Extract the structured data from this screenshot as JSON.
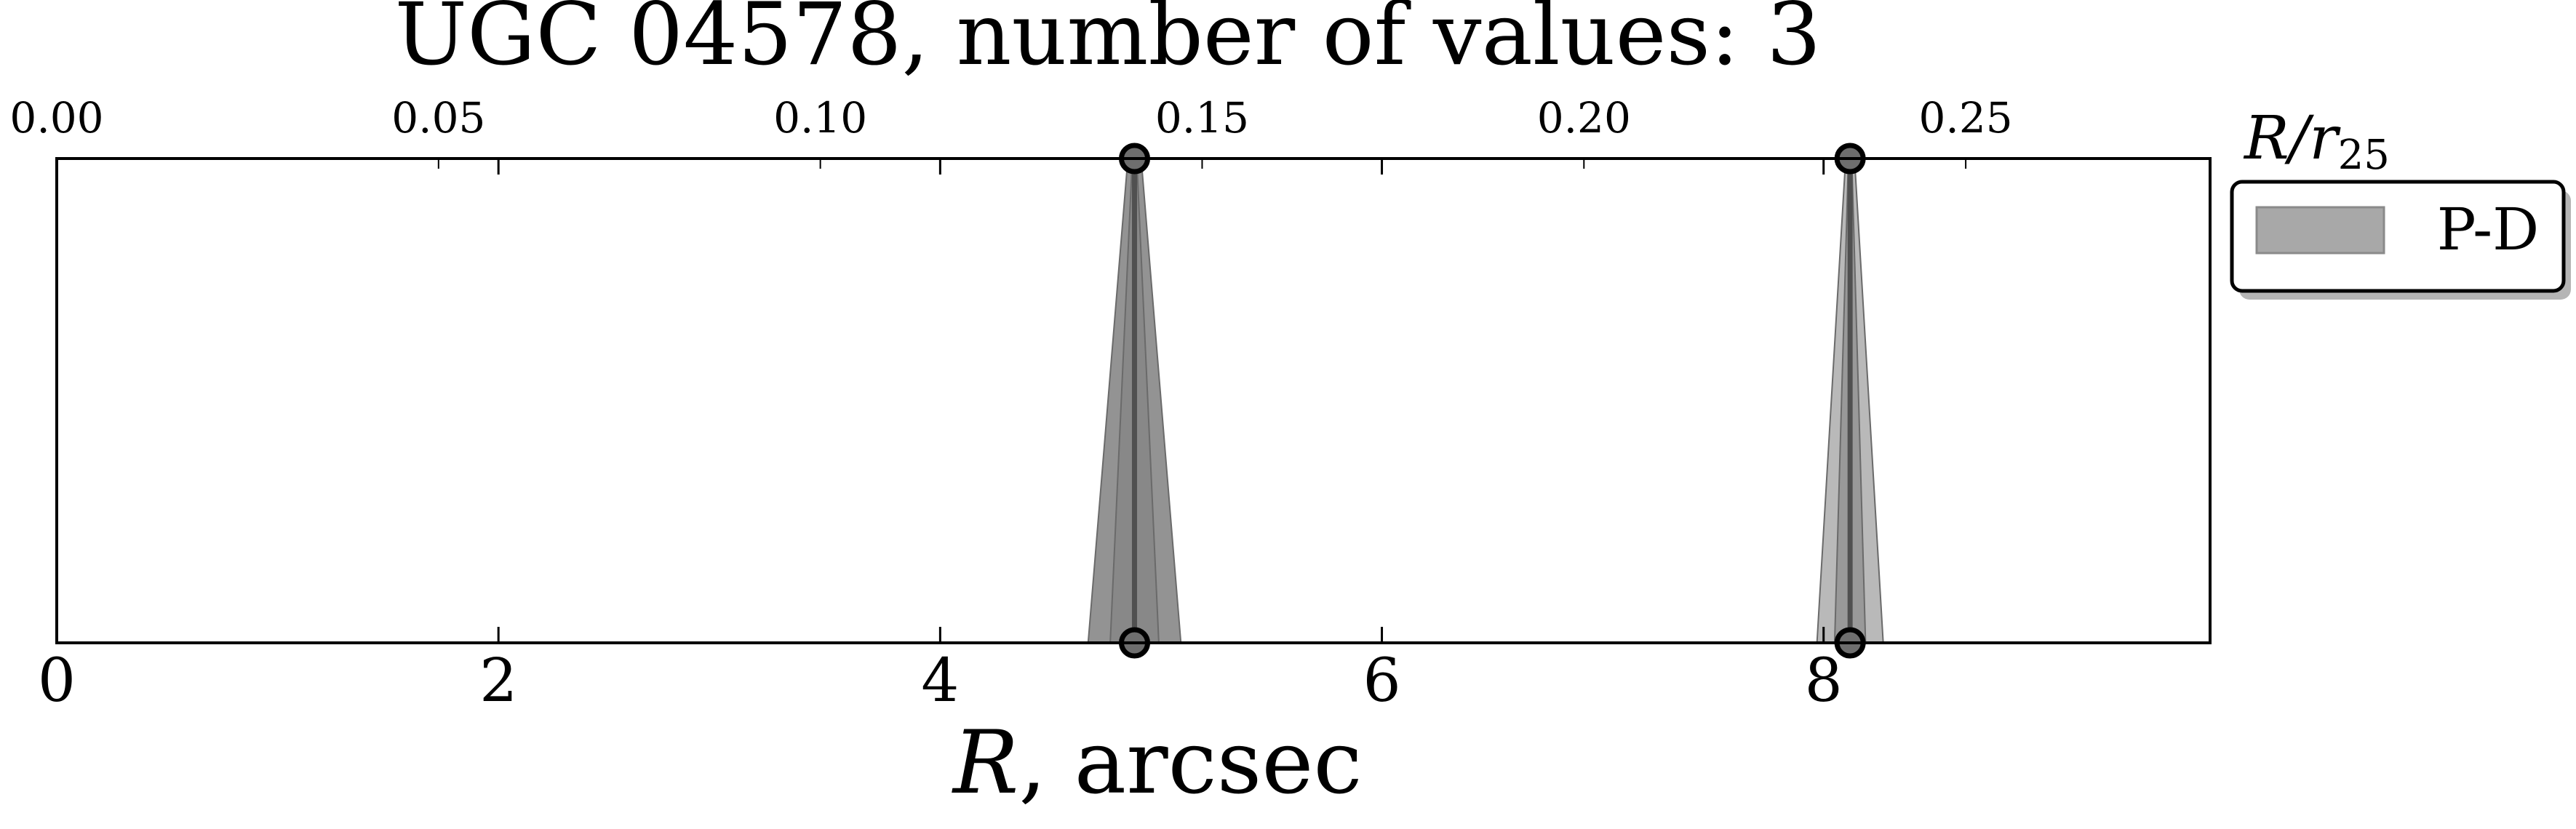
{
  "chart_data": {
    "type": "area",
    "title": "UGC 04578, number of values: 3",
    "xlabel_symbol": "R",
    "xlabel_rest": ", arcsec",
    "top_axis_label_main": "R/r",
    "top_axis_label_sub": "25",
    "xlim": [
      0,
      9.75
    ],
    "x_ticks": [
      0,
      2,
      4,
      6,
      8
    ],
    "x_tick_labels": [
      "0",
      "2",
      "4",
      "6",
      "8"
    ],
    "top_xlim": [
      0,
      0.282
    ],
    "top_ticks": [
      0.0,
      0.05,
      0.1,
      0.15,
      0.2,
      0.25
    ],
    "top_tick_labels": [
      "0.00",
      "0.05",
      "0.10",
      "0.15",
      "0.20",
      "0.25"
    ],
    "ylim": [
      0,
      1
    ],
    "legend": {
      "placement": "outside-top-right",
      "entries": [
        "P-D"
      ]
    },
    "series": [
      {
        "name": "P-D",
        "color": "#808080",
        "shapes": [
          {
            "center": 4.88,
            "base_left": 4.67,
            "base_right": 5.09,
            "top_width": 0.06,
            "opacity": 0.85
          },
          {
            "center": 4.88,
            "base_left": 4.77,
            "base_right": 4.99,
            "top_width": 0.02,
            "opacity": 0.6
          },
          {
            "center": 8.12,
            "base_left": 7.97,
            "base_right": 8.27,
            "top_width": 0.04,
            "opacity": 0.55
          },
          {
            "center": 8.12,
            "base_left": 8.05,
            "base_right": 8.19,
            "top_width": 0.015,
            "opacity": 0.55
          }
        ],
        "points": [
          {
            "x": 4.88,
            "y": 0
          },
          {
            "x": 4.88,
            "y": 1
          },
          {
            "x": 8.12,
            "y": 0
          },
          {
            "x": 8.12,
            "y": 1
          }
        ]
      }
    ]
  }
}
